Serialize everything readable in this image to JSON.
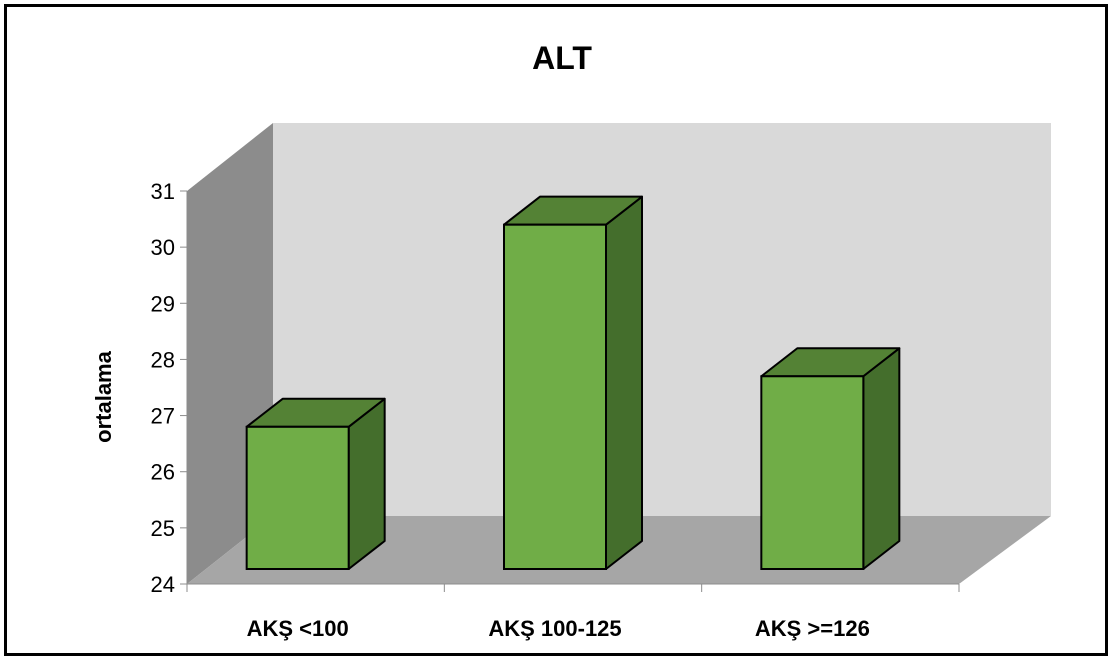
{
  "chart_data": {
    "type": "bar",
    "title": "ALT",
    "xlabel": "",
    "ylabel": "ortalama",
    "categories": [
      "AKŞ <100",
      "AKŞ 100-125",
      "AKŞ >=126"
    ],
    "values": [
      26.8,
      30.4,
      27.7
    ],
    "ylim": [
      24,
      31
    ],
    "yticks": [
      24,
      25,
      26,
      27,
      28,
      29,
      30,
      31
    ],
    "grid": false,
    "legend": "none",
    "three_d": true,
    "colors": {
      "bar_front": "#70ad47",
      "bar_top": "#548235",
      "bar_side": "#446e2c",
      "back_wall": "#d9d9d9",
      "side_wall": "#8c8c8c",
      "floor": "#a6a6a6"
    }
  }
}
